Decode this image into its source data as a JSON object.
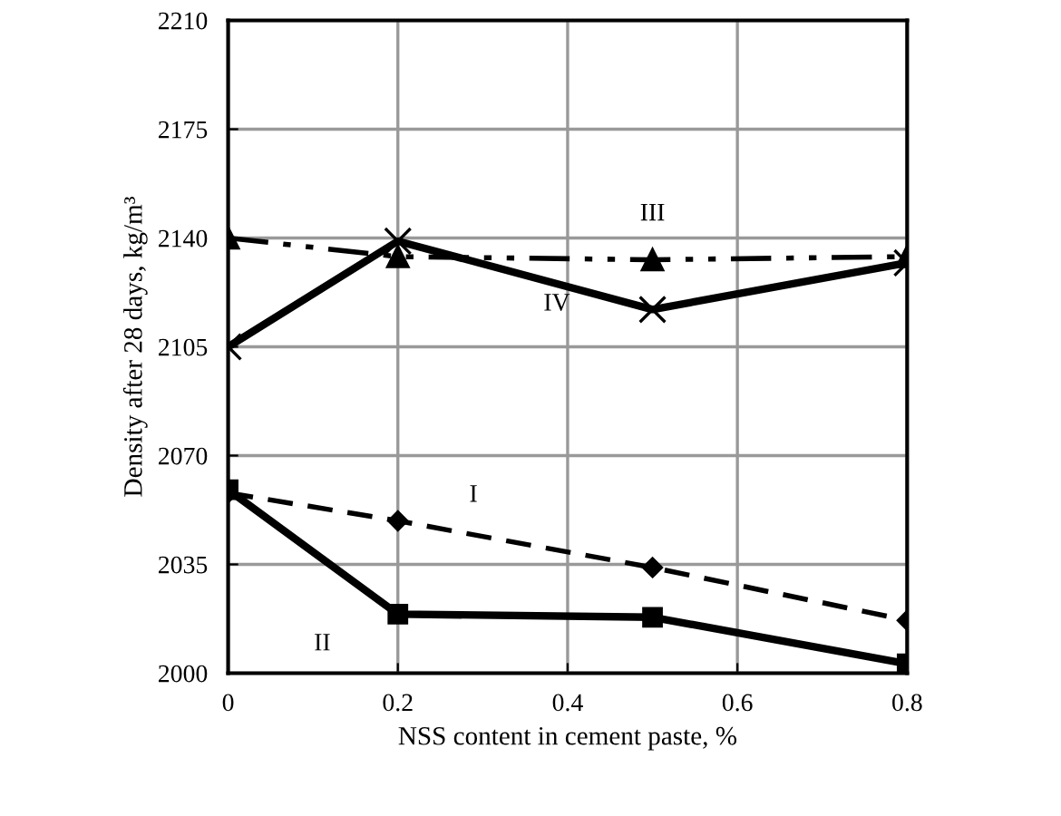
{
  "chart_data": {
    "type": "line",
    "xlabel": "NSS content in cement paste, %",
    "ylabel": "Density after 28 days, kg/m³",
    "x": [
      0,
      0.2,
      0.5,
      0.8
    ],
    "series": [
      {
        "name": "I",
        "color": "#000000",
        "values": [
          2058,
          2049,
          2034,
          2017
        ],
        "marker": "diamond",
        "line_style": "dashed"
      },
      {
        "name": "II",
        "color": "#000000",
        "values": [
          2059,
          2019,
          2018,
          2003
        ],
        "marker": "square",
        "line_style": "solid"
      },
      {
        "name": "III",
        "color": "#000000",
        "values": [
          2140,
          2134,
          2133,
          2134
        ],
        "marker": "triangle",
        "line_style": "dashdotdot"
      },
      {
        "name": "IV",
        "color": "#000000",
        "values": [
          2105,
          2139,
          2117,
          2132
        ],
        "marker": "cross",
        "line_style": "solid"
      }
    ],
    "xlim": [
      0,
      0.8
    ],
    "xticks": [
      0,
      0.2,
      0.4,
      0.6,
      0.8
    ],
    "ylim": [
      2000,
      2210
    ],
    "yticks": [
      2000,
      2035,
      2070,
      2105,
      2140,
      2175,
      2210
    ],
    "grid": true,
    "legend": false
  }
}
